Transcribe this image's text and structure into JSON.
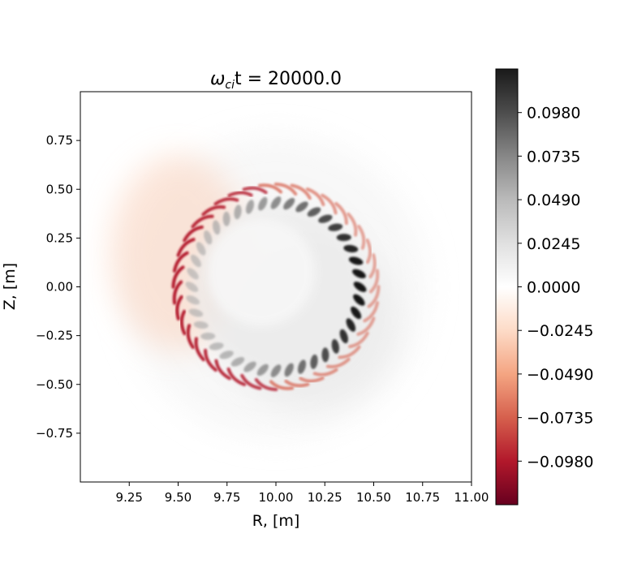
{
  "chart_data": {
    "type": "heatmap",
    "title": "ω_ci t = 20000.0",
    "title_parts": {
      "omega": "ω",
      "sub": "ci",
      "rest": "t = 20000.0"
    },
    "xlabel": "R, [m]",
    "ylabel": "Z, [m]",
    "xlim": [
      9.0,
      11.0
    ],
    "ylim": [
      -1.0,
      1.0
    ],
    "xticks": [
      9.25,
      9.5,
      9.75,
      10.0,
      10.25,
      10.5,
      10.75,
      11.0
    ],
    "xtick_labels": [
      "9.25",
      "9.50",
      "9.75",
      "10.00",
      "10.25",
      "10.50",
      "10.75",
      "11.00"
    ],
    "yticks": [
      0.75,
      0.5,
      0.25,
      0.0,
      -0.25,
      -0.5,
      -0.75
    ],
    "ytick_labels": [
      "0.75",
      "0.50",
      "0.25",
      "0.00",
      "−0.25",
      "−0.50",
      "−0.75"
    ],
    "colorbar": {
      "colormap": "RdGy",
      "range": [
        -0.1225,
        0.1225
      ],
      "ticks": [
        0.098,
        0.0735,
        0.049,
        0.0245,
        0.0,
        -0.0245,
        -0.049,
        -0.0735,
        -0.098
      ],
      "tick_labels": [
        "0.0980",
        "0.0735",
        "0.0490",
        "0.0245",
        "0.0000",
        "−0.0245",
        "−0.0490",
        "−0.0735",
        "−0.0980"
      ],
      "colors": [
        "#67001f",
        "#b2182b",
        "#d6604d",
        "#f4a582",
        "#fddbc7",
        "#ffffff",
        "#e0e0e0",
        "#bababa",
        "#878787",
        "#4d4d4d",
        "#1a1a1a"
      ]
    },
    "field": {
      "center": [
        10.0,
        0.0
      ],
      "ring_radius_m": 0.5,
      "lobe_count": 40,
      "negative_side": "left",
      "positive_interior": "inner-right"
    },
    "grid": false
  }
}
